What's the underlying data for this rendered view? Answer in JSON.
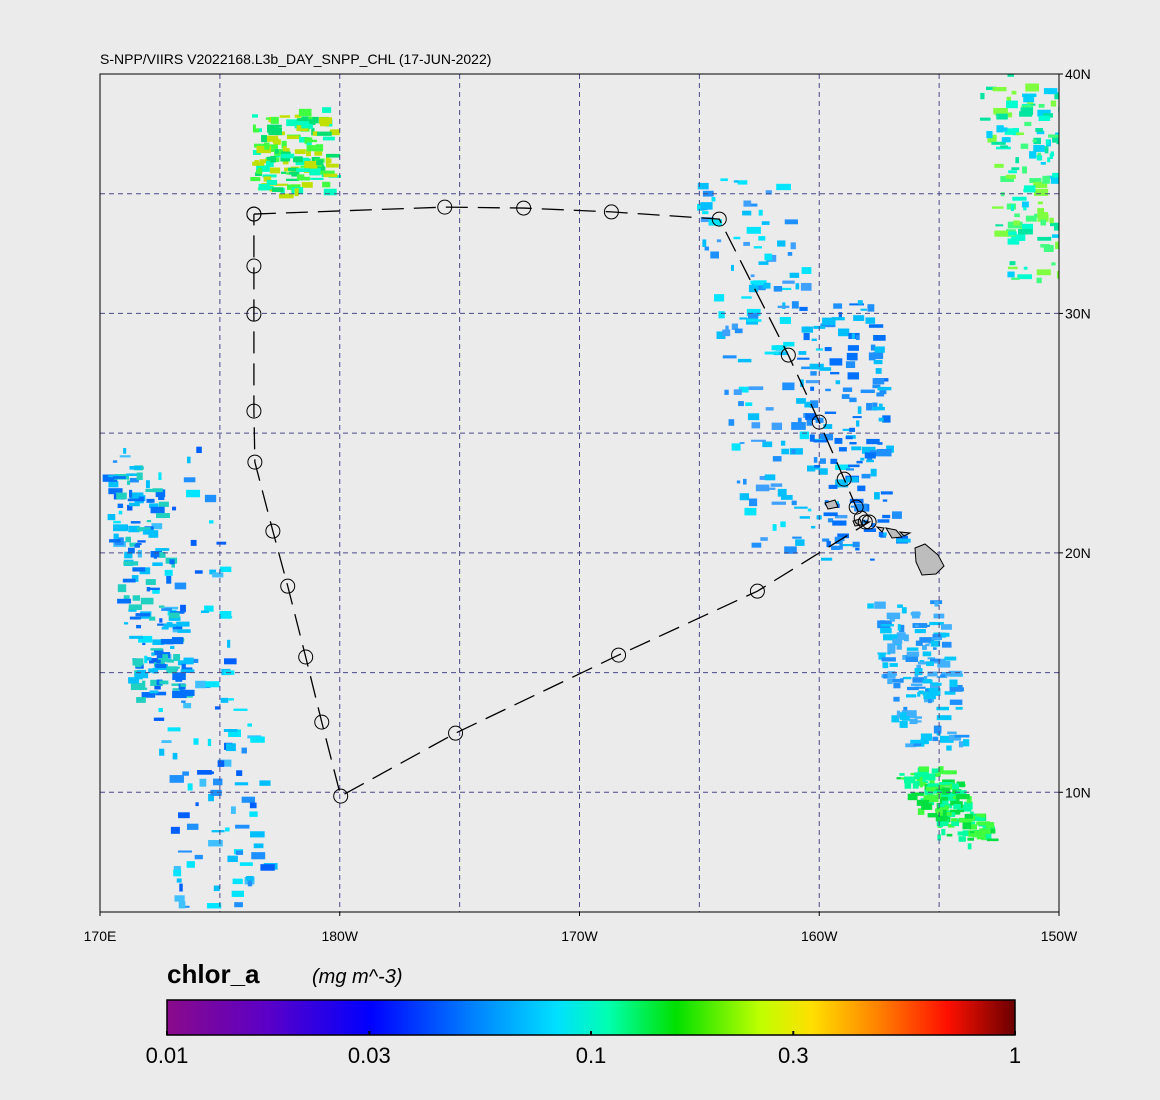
{
  "map": {
    "title": "S-NPP/VIIRS V2022168.L3b_DAY_SNPP_CHL (17-JUN-2022)",
    "xlim": [
      170,
      210
    ],
    "ylim": [
      5,
      40
    ],
    "xticks": [
      {
        "value": 170,
        "label": "170E"
      },
      {
        "value": 180,
        "label": "180W"
      },
      {
        "value": 190,
        "label": "170W"
      },
      {
        "value": 200,
        "label": "160W"
      },
      {
        "value": 210,
        "label": "150W"
      }
    ],
    "yticks": [
      {
        "value": 40,
        "label": "40N"
      },
      {
        "value": 30,
        "label": "30N"
      },
      {
        "value": 20,
        "label": "20N"
      },
      {
        "value": 10,
        "label": "10N"
      }
    ],
    "xgrid": [
      175,
      180,
      185,
      190,
      195,
      200,
      205
    ],
    "ygrid": [
      10,
      15,
      20,
      25,
      30,
      35
    ]
  },
  "track": {
    "lon": [
      176.42,
      184.38,
      187.67,
      191.33,
      195.83,
      198.71,
      200.0,
      201.04,
      201.54,
      201.75,
      201.92,
      202.08,
      197.42,
      191.63,
      184.83,
      180.04,
      179.25,
      178.58,
      177.83,
      177.21,
      176.46,
      176.42,
      176.42,
      176.42,
      176.42
    ],
    "lat": [
      34.15,
      34.44,
      34.4,
      34.24,
      33.94,
      28.26,
      25.46,
      23.08,
      21.91,
      21.45,
      21.29,
      21.29,
      18.4,
      15.73,
      12.47,
      9.84,
      12.93,
      15.65,
      18.61,
      20.91,
      23.79,
      25.92,
      29.97,
      31.98,
      34.15
    ]
  },
  "colorbar": {
    "label": "chlor_a",
    "units": "(mg m^-3)",
    "log": true,
    "lim": [
      0.01,
      1
    ],
    "ticks": [
      0.01,
      0.03,
      0.1,
      0.3,
      1
    ]
  }
}
